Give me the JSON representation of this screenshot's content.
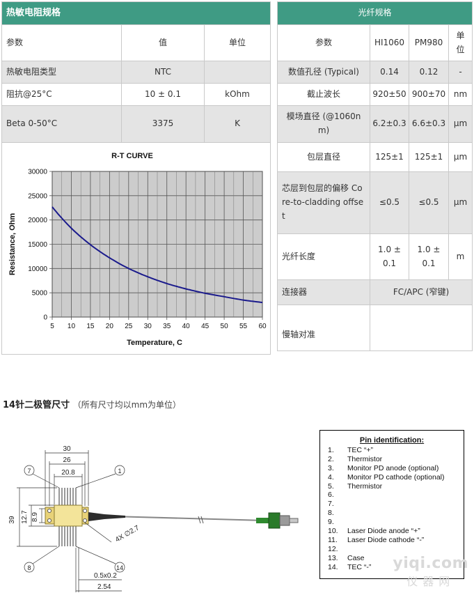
{
  "thermistor": {
    "title": "热敏电阻规格",
    "headers": [
      "参数",
      "值",
      "单位"
    ],
    "rows": [
      {
        "param": "热敏电阻类型",
        "value": "NTC",
        "unit": ""
      },
      {
        "param": "阻抗@25°C",
        "value": "10 ± 0.1",
        "unit": "kOhm"
      },
      {
        "param": "Beta 0-50°C",
        "value": "3375",
        "unit": "K"
      }
    ]
  },
  "chart_data": {
    "type": "line",
    "title": "R-T CURVE",
    "xlabel": "Temperature, C",
    "ylabel": "Resistance, Ohm",
    "xlim": [
      5,
      60
    ],
    "ylim": [
      0,
      30000
    ],
    "xticks": [
      5,
      10,
      15,
      20,
      25,
      30,
      35,
      40,
      45,
      50,
      55,
      60
    ],
    "yticks": [
      0,
      5000,
      10000,
      15000,
      20000,
      25000,
      30000
    ],
    "grid": true,
    "series": [
      {
        "color": "#1a1a8c",
        "x": [
          5,
          10,
          15,
          20,
          25,
          30,
          35,
          40,
          45,
          50,
          55,
          60
        ],
        "y": [
          22700,
          18300,
          14900,
          12200,
          10000,
          8300,
          6900,
          5800,
          4900,
          4200,
          3500,
          3000
        ]
      }
    ]
  },
  "fiber": {
    "title": "光纤规格",
    "headers": [
      "参数",
      "HI1060",
      "PM980",
      "单位"
    ],
    "rows": [
      {
        "param": "数值孔径 (Typical)",
        "hi": "0.14",
        "pm": "0.12",
        "unit": "-"
      },
      {
        "param": "截止波长",
        "hi": "920±50",
        "pm": "900±70",
        "unit": "nm"
      },
      {
        "param": "模场直径 (@1060nm)",
        "hi": "6.2±0.3",
        "pm": "6.6±0.3",
        "unit": "μm"
      },
      {
        "param": "包层直径",
        "hi": "125±1",
        "pm": "125±1",
        "unit": "μm"
      },
      {
        "param": "芯层到包层的偏移 Core-to-cladding offset",
        "hi": "≤0.5",
        "pm": "≤0.5",
        "unit": "μm"
      },
      {
        "param": "光纤长度",
        "hi": "1.0 ± 0.1",
        "pm": "1.0 ± 0.1",
        "unit": "m"
      }
    ],
    "connector_label": "连接器",
    "connector_value": "FC/APC (窄键)",
    "pm_label": "慢轴对准"
  },
  "package": {
    "title": "14针二极管尺寸",
    "note": "（所有尺寸均以mm为单位）",
    "dims": {
      "d30": "30",
      "d26": "26",
      "d208": "20.8",
      "d39": "39",
      "d127": "12.7",
      "d89": "8.9",
      "hole": "4X ∅2.7",
      "pin_w": "0.5x0.2",
      "pitch": "2.54",
      "p1": "1",
      "p7": "7",
      "p8": "8",
      "p14": "14"
    }
  },
  "pin_identification": {
    "title": "Pin identification:",
    "pins": [
      {
        "num": "1.",
        "label": "TEC “+”"
      },
      {
        "num": "2.",
        "label": "Thermistor"
      },
      {
        "num": "3.",
        "label": "Monitor PD anode (optional)"
      },
      {
        "num": "4.",
        "label": "Monitor PD cathode (optional)"
      },
      {
        "num": "5.",
        "label": "Thermistor"
      },
      {
        "num": "6.",
        "label": ""
      },
      {
        "num": "7.",
        "label": ""
      },
      {
        "num": "8.",
        "label": ""
      },
      {
        "num": "9.",
        "label": ""
      },
      {
        "num": "10.",
        "label": "Laser Diode anode “+”"
      },
      {
        "num": "11.",
        "label": "Laser Diode cathode “-”"
      },
      {
        "num": "12.",
        "label": ""
      },
      {
        "num": "13.",
        "label": "Case"
      },
      {
        "num": "14.",
        "label": "TEC “-”"
      }
    ]
  },
  "watermark": {
    "line1": "yiqi.com",
    "line2": "仪器网"
  }
}
